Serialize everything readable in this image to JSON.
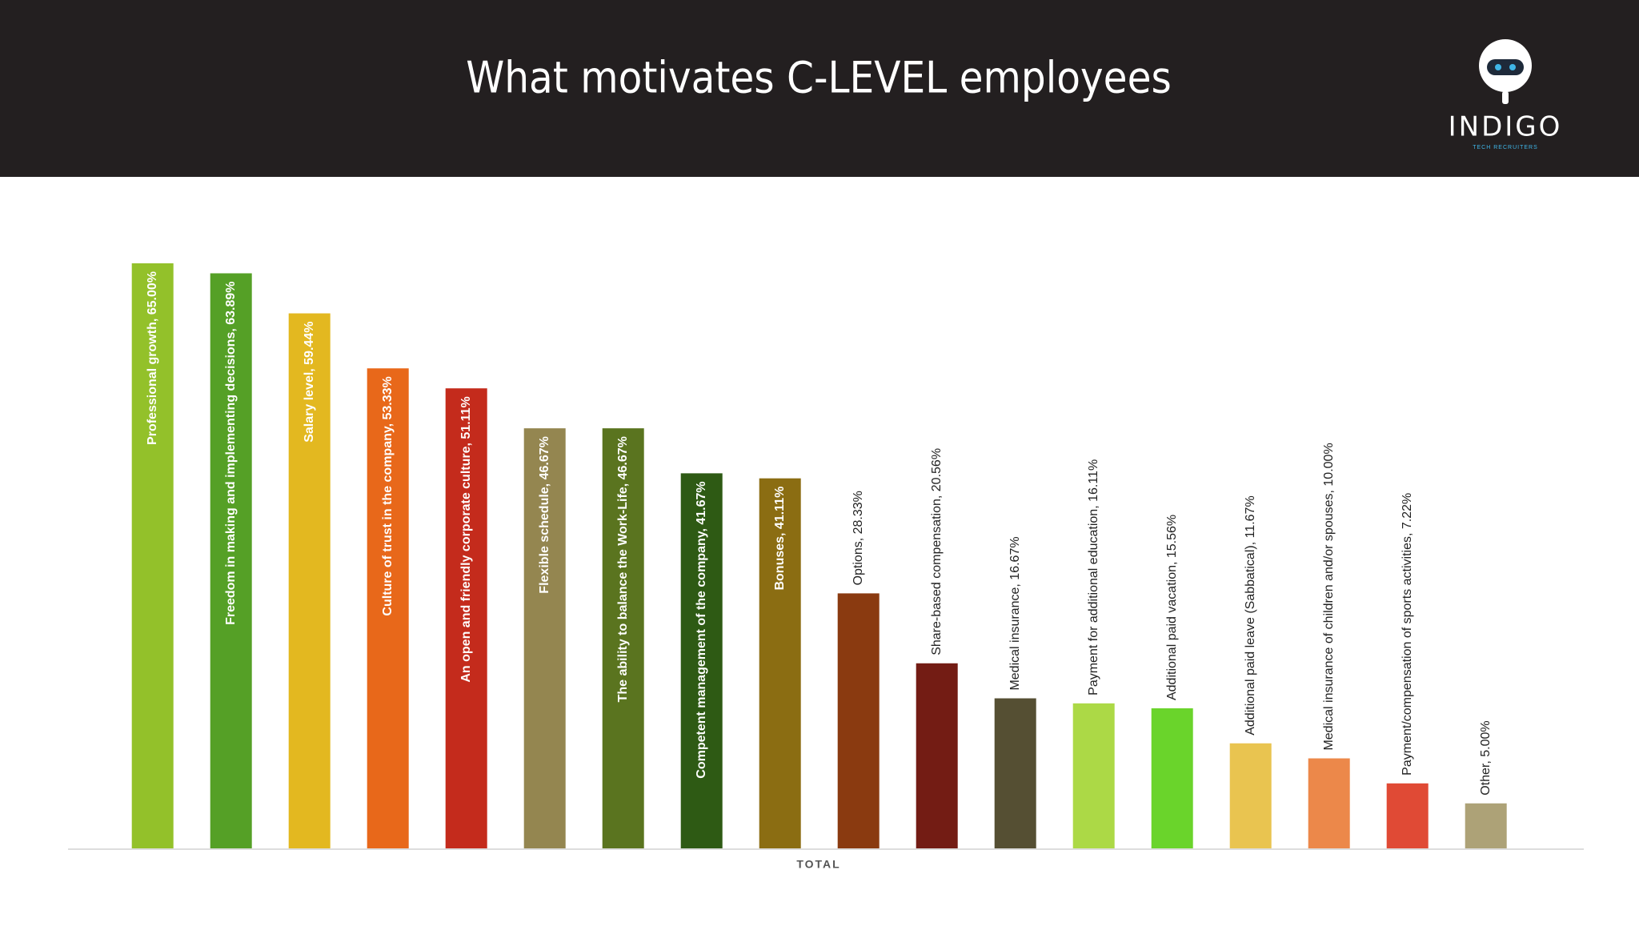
{
  "header": {
    "logo": "INDIGO",
    "logo_sub": "TECH RECRUITERS"
  },
  "chart_data": {
    "type": "bar",
    "title": "What motivates C-LEVEL employees",
    "x_label": "TOTAL",
    "categories": [
      null,
      null,
      null,
      null,
      null,
      null,
      null,
      null,
      null,
      null,
      null,
      null,
      null,
      null,
      null,
      null,
      null,
      null
    ],
    "values": [
      65.0,
      63.89,
      59.44,
      53.33,
      51.11,
      46.67,
      46.67,
      41.67,
      41.11,
      28.33,
      20.56,
      16.67,
      16.11,
      15.56,
      11.67,
      10.0,
      7.22,
      5.0
    ],
    "value_labels": [
      "Professional growth, 65.00%",
      "Freedom in making and implementing decisions, 63.89%",
      "Salary level, 59.44%",
      "Culture of trust in the company, 53.33%",
      "An open and friendly corporate culture, 51.11%",
      "Flexible schedule, 46.67%",
      "The ability to balance the Work-Life, 46.67%",
      "Competent management of the company, 41.67%",
      "Bonuses, 41.11%",
      "Options, 28.33%",
      "Share-based compensation, 20.56%",
      "Medical insurance, 16.67%",
      "Payment for additional education, 16.11%",
      "Additional paid vacation, 15.56%",
      "Additional paid leave (Sabbatical), 11.67%",
      "Medical insurance of children and/or spouses, 10.00%",
      "Payment/compensation of sports activities, 7.22%",
      "Other, 5.00%"
    ],
    "colors": [
      "#93c12a",
      "#55a026",
      "#e3b820",
      "#e8681a",
      "#c42b1c",
      "#948650",
      "#5a741f",
      "#2e5a14",
      "#8b6d12",
      "#8a3a10",
      "#731c14",
      "#554f33",
      "#acd946",
      "#6ad42b",
      "#e9c450",
      "#ec884a",
      "#e04a35",
      "#ada277"
    ]
  }
}
